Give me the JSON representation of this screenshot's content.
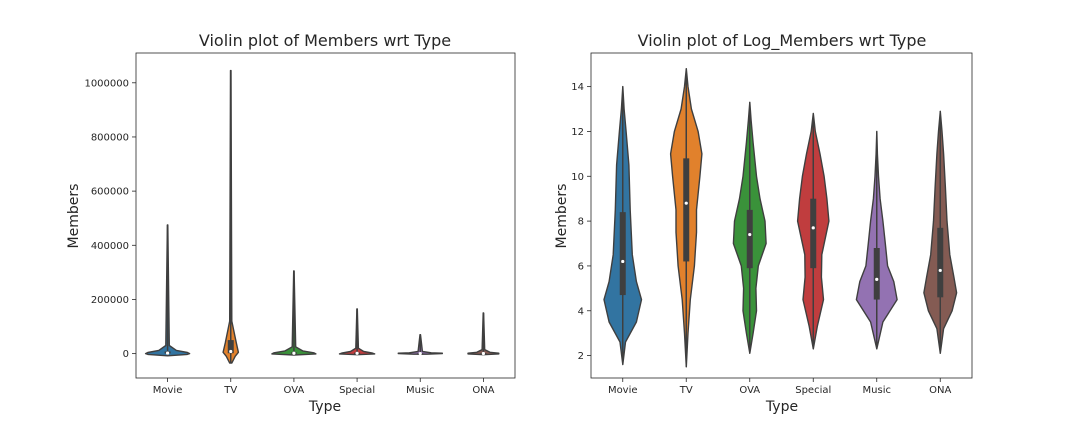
{
  "chart_data": [
    {
      "type": "violin",
      "title": "Violin plot of Members wrt Type",
      "xlabel": "Type",
      "ylabel": "Members",
      "categories": [
        "Movie",
        "TV",
        "OVA",
        "Special",
        "Music",
        "ONA"
      ],
      "ylim": [
        -90000,
        1110000
      ],
      "yticks": [
        0,
        200000,
        400000,
        600000,
        800000,
        1000000
      ],
      "ytick_labels": [
        "0",
        "200000",
        "400000",
        "600000",
        "800000",
        "1000000"
      ],
      "grid": false,
      "colors": [
        "#3274a1",
        "#e1812c",
        "#3a923a",
        "#c03d3e",
        "#9372b2",
        "#845b53"
      ],
      "violins": [
        {
          "min": -5000,
          "max": 475000,
          "q1": 500,
          "median": 2000,
          "q3": 8000,
          "profile": [
            [
              -8000,
              0
            ],
            [
              -3000,
              0.9
            ],
            [
              0,
              1
            ],
            [
              4000,
              0.9
            ],
            [
              12000,
              0.4
            ],
            [
              30000,
              0.08
            ],
            [
              475000,
              0.01
            ]
          ]
        },
        {
          "min": -35000,
          "max": 1045000,
          "q1": 1500,
          "median": 8000,
          "q3": 50000,
          "profile": [
            [
              -35000,
              0.05
            ],
            [
              -10000,
              0.2
            ],
            [
              5000,
              0.35
            ],
            [
              40000,
              0.25
            ],
            [
              120000,
              0.05
            ],
            [
              1045000,
              0.01
            ]
          ]
        },
        {
          "min": -3000,
          "max": 305000,
          "q1": 300,
          "median": 1500,
          "q3": 5000,
          "profile": [
            [
              -5000,
              0
            ],
            [
              -1000,
              1
            ],
            [
              3000,
              0.9
            ],
            [
              10000,
              0.4
            ],
            [
              25000,
              0.08
            ],
            [
              305000,
              0.01
            ]
          ]
        },
        {
          "min": -3000,
          "max": 165000,
          "q1": 300,
          "median": 1200,
          "q3": 4000,
          "profile": [
            [
              -4000,
              0
            ],
            [
              -1000,
              0.8
            ],
            [
              2000,
              0.7
            ],
            [
              8000,
              0.3
            ],
            [
              20000,
              0.06
            ],
            [
              165000,
              0.01
            ]
          ]
        },
        {
          "min": -2000,
          "max": 70000,
          "q1": 100,
          "median": 300,
          "q3": 1500,
          "profile": [
            [
              -2000,
              0.3
            ],
            [
              0,
              1
            ],
            [
              1500,
              1
            ],
            [
              3000,
              0.5
            ],
            [
              8000,
              0.1
            ],
            [
              70000,
              0.01
            ]
          ]
        },
        {
          "min": -3000,
          "max": 150000,
          "q1": 100,
          "median": 400,
          "q3": 2000,
          "profile": [
            [
              -4000,
              0
            ],
            [
              -1000,
              0.7
            ],
            [
              1500,
              0.7
            ],
            [
              5000,
              0.3
            ],
            [
              15000,
              0.06
            ],
            [
              150000,
              0.01
            ]
          ]
        }
      ]
    },
    {
      "type": "violin",
      "title": "Violin plot of Log_Members wrt Type",
      "xlabel": "Type",
      "ylabel": "Members",
      "categories": [
        "Movie",
        "TV",
        "OVA",
        "Special",
        "Music",
        "ONA"
      ],
      "ylim": [
        1.0,
        15.5
      ],
      "yticks": [
        2,
        4,
        6,
        8,
        10,
        12,
        14
      ],
      "ytick_labels": [
        "2",
        "4",
        "6",
        "8",
        "10",
        "12",
        "14"
      ],
      "grid": false,
      "colors": [
        "#3274a1",
        "#e1812c",
        "#3a923a",
        "#c03d3e",
        "#9372b2",
        "#845b53"
      ],
      "violins": [
        {
          "min": 1.6,
          "max": 14.0,
          "q1": 4.7,
          "median": 6.2,
          "q3": 8.4,
          "profile": [
            [
              1.6,
              0
            ],
            [
              2.6,
              0.08
            ],
            [
              3.5,
              0.4
            ],
            [
              4.5,
              0.55
            ],
            [
              5.3,
              0.4
            ],
            [
              6.5,
              0.28
            ],
            [
              8.5,
              0.22
            ],
            [
              10.5,
              0.18
            ],
            [
              12.0,
              0.1
            ],
            [
              13.0,
              0.04
            ],
            [
              14.0,
              0
            ]
          ]
        },
        {
          "min": 1.5,
          "max": 14.8,
          "q1": 6.2,
          "median": 8.8,
          "q3": 10.8,
          "profile": [
            [
              1.5,
              0
            ],
            [
              3.0,
              0.05
            ],
            [
              4.5,
              0.12
            ],
            [
              6.0,
              0.24
            ],
            [
              7.5,
              0.3
            ],
            [
              8.5,
              0.3
            ],
            [
              10.0,
              0.4
            ],
            [
              11.0,
              0.46
            ],
            [
              12.0,
              0.35
            ],
            [
              13.0,
              0.15
            ],
            [
              14.0,
              0.05
            ],
            [
              14.8,
              0
            ]
          ]
        },
        {
          "min": 2.1,
          "max": 13.3,
          "q1": 5.9,
          "median": 7.4,
          "q3": 8.5,
          "profile": [
            [
              2.1,
              0
            ],
            [
              3.0,
              0.1
            ],
            [
              4.0,
              0.2
            ],
            [
              5.0,
              0.18
            ],
            [
              6.0,
              0.25
            ],
            [
              7.0,
              0.48
            ],
            [
              8.0,
              0.45
            ],
            [
              9.0,
              0.3
            ],
            [
              10.0,
              0.2
            ],
            [
              11.5,
              0.1
            ],
            [
              12.5,
              0.04
            ],
            [
              13.3,
              0
            ]
          ]
        },
        {
          "min": 2.3,
          "max": 12.8,
          "q1": 5.9,
          "median": 7.7,
          "q3": 9.0,
          "profile": [
            [
              2.3,
              0
            ],
            [
              3.3,
              0.12
            ],
            [
              4.5,
              0.3
            ],
            [
              5.5,
              0.24
            ],
            [
              6.5,
              0.25
            ],
            [
              8.0,
              0.46
            ],
            [
              9.0,
              0.4
            ],
            [
              10.0,
              0.32
            ],
            [
              11.0,
              0.2
            ],
            [
              12.0,
              0.06
            ],
            [
              12.8,
              0
            ]
          ]
        },
        {
          "min": 2.3,
          "max": 12.0,
          "q1": 4.5,
          "median": 5.4,
          "q3": 6.8,
          "profile": [
            [
              2.3,
              0
            ],
            [
              3.5,
              0.18
            ],
            [
              4.5,
              0.6
            ],
            [
              5.3,
              0.5
            ],
            [
              6.0,
              0.32
            ],
            [
              7.0,
              0.25
            ],
            [
              8.0,
              0.18
            ],
            [
              9.0,
              0.1
            ],
            [
              10.0,
              0.05
            ],
            [
              11.0,
              0.02
            ],
            [
              12.0,
              0
            ]
          ]
        },
        {
          "min": 2.1,
          "max": 12.9,
          "q1": 4.6,
          "median": 5.8,
          "q3": 7.7,
          "profile": [
            [
              2.1,
              0
            ],
            [
              3.2,
              0.1
            ],
            [
              4.0,
              0.35
            ],
            [
              4.8,
              0.48
            ],
            [
              5.5,
              0.4
            ],
            [
              6.5,
              0.28
            ],
            [
              8.0,
              0.2
            ],
            [
              9.5,
              0.15
            ],
            [
              11.0,
              0.1
            ],
            [
              12.0,
              0.05
            ],
            [
              12.9,
              0
            ]
          ]
        }
      ]
    }
  ]
}
